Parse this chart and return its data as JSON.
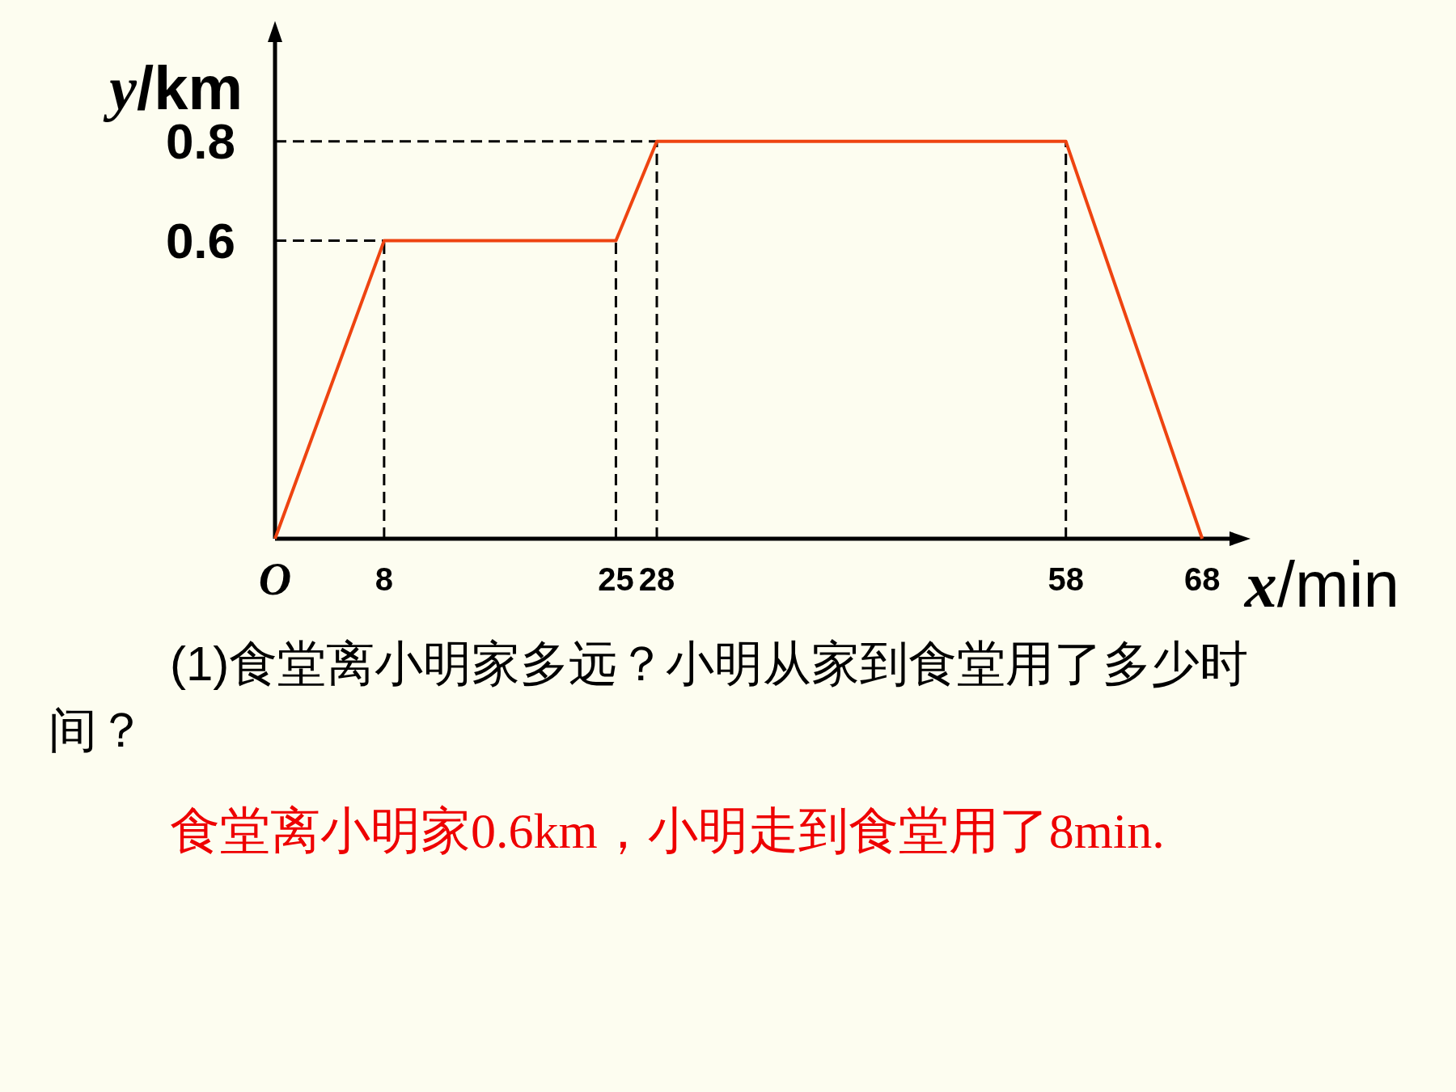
{
  "chart_data": {
    "type": "line",
    "xlabel": "x/min",
    "ylabel": "y/km",
    "x": [
      0,
      8,
      25,
      28,
      58,
      68
    ],
    "series": [
      {
        "color": "#ee4411",
        "values": [
          0,
          0.6,
          0.6,
          0.8,
          0.8,
          0
        ]
      },
      {
        "type": "line",
        "x": [
          8,
          8
        ],
        "values": [
          0,
          0.6
        ],
        "color": "#000000",
        "line_style": "dashed"
      },
      {
        "type": "line",
        "x": [
          25,
          25
        ],
        "values": [
          0,
          0.6
        ],
        "color": "#000000",
        "line_style": "dashed"
      },
      {
        "type": "line",
        "x": [
          28,
          28
        ],
        "values": [
          0,
          0.8
        ],
        "color": "#000000",
        "line_style": "dashed"
      },
      {
        "type": "line",
        "x": [
          58,
          58
        ],
        "values": [
          0,
          0.8
        ],
        "color": "#000000",
        "line_style": "dashed"
      },
      {
        "type": "line",
        "x": [
          0,
          8
        ],
        "values": [
          0.6,
          0.6
        ],
        "color": "#000000",
        "line_style": "dashed"
      },
      {
        "type": "line",
        "x": [
          0,
          28
        ],
        "values": [
          0.8,
          0.8
        ],
        "color": "#000000",
        "line_style": "dashed"
      }
    ],
    "xlim": [
      0,
      70
    ],
    "ylim": [
      0,
      1
    ],
    "xticks": [
      {
        "value": 0,
        "label": "O"
      },
      8,
      25,
      28,
      58,
      68
    ],
    "yticks": [
      0.6,
      0.8
    ],
    "line_style": "solid",
    "marker": "none",
    "annotations": [
      "(1)食堂离小明家多远？小明从家到食堂用了多少时间？",
      "食堂离小明家0.6km，小明走到食堂用了8min."
    ]
  }
}
